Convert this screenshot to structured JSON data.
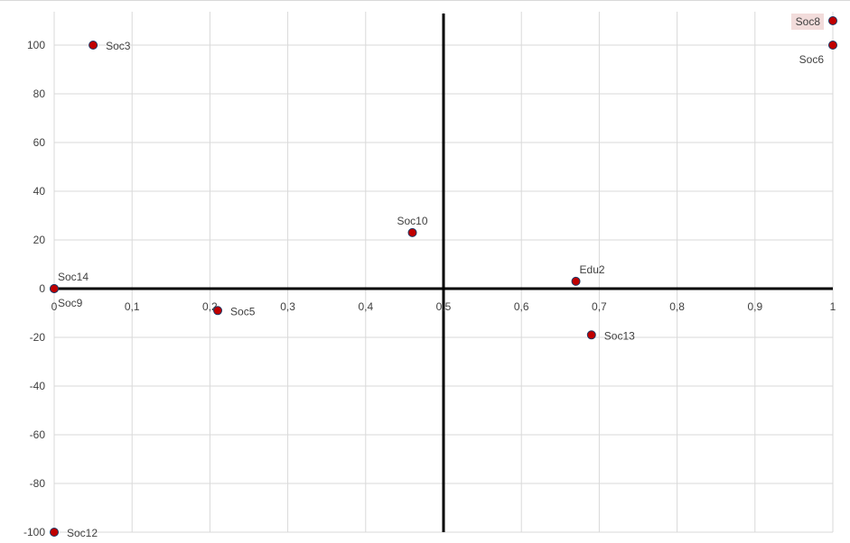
{
  "chart_data": {
    "type": "scatter",
    "title": "",
    "xlabel": "",
    "ylabel": "",
    "xlim": [
      0,
      1
    ],
    "ylim": [
      -100,
      110
    ],
    "grid": true,
    "x_ticks": [
      {
        "value": 0,
        "label": "0"
      },
      {
        "value": 0.1,
        "label": "0,1"
      },
      {
        "value": 0.2,
        "label": "0,2"
      },
      {
        "value": 0.3,
        "label": "0,3"
      },
      {
        "value": 0.4,
        "label": "0,4"
      },
      {
        "value": 0.5,
        "label": "0,5"
      },
      {
        "value": 0.6,
        "label": "0,6"
      },
      {
        "value": 0.7,
        "label": "0,7"
      },
      {
        "value": 0.8,
        "label": "0,8"
      },
      {
        "value": 0.9,
        "label": "0,9"
      },
      {
        "value": 1,
        "label": "1"
      }
    ],
    "y_ticks": [
      {
        "value": 100,
        "label": "100"
      },
      {
        "value": 80,
        "label": "80"
      },
      {
        "value": 60,
        "label": "60"
      },
      {
        "value": 40,
        "label": "40"
      },
      {
        "value": 20,
        "label": "20"
      },
      {
        "value": 0,
        "label": "0"
      },
      {
        "value": -20,
        "label": "-20"
      },
      {
        "value": -40,
        "label": "-40"
      },
      {
        "value": -60,
        "label": "-60"
      },
      {
        "value": -80,
        "label": "-80"
      },
      {
        "value": -100,
        "label": "-100"
      }
    ],
    "quadrant_lines": {
      "x": 0.5,
      "y": 0
    },
    "point_color": "#c00000",
    "points": [
      {
        "label": "Soc3",
        "x": 0.05,
        "y": 100,
        "label_pos": "right"
      },
      {
        "label": "Soc8",
        "x": 1.0,
        "y": 110,
        "label_pos": "left",
        "highlight": "#f2dcdb"
      },
      {
        "label": "Soc6",
        "x": 1.0,
        "y": 100,
        "label_pos": "below-left"
      },
      {
        "label": "Soc10",
        "x": 0.46,
        "y": 23,
        "label_pos": "above"
      },
      {
        "label": "Soc14",
        "x": 0.0,
        "y": 0,
        "label_pos": "above-right"
      },
      {
        "label": "Soc9",
        "x": 0.0,
        "y": 0,
        "label_pos": "below-right"
      },
      {
        "label": "Soc5",
        "x": 0.21,
        "y": -9,
        "label_pos": "right"
      },
      {
        "label": "Edu2",
        "x": 0.67,
        "y": 3,
        "label_pos": "above-right"
      },
      {
        "label": "Soc13",
        "x": 0.69,
        "y": -19,
        "label_pos": "right"
      },
      {
        "label": "Soc12",
        "x": 0.0,
        "y": -100,
        "label_pos": "right"
      }
    ]
  }
}
